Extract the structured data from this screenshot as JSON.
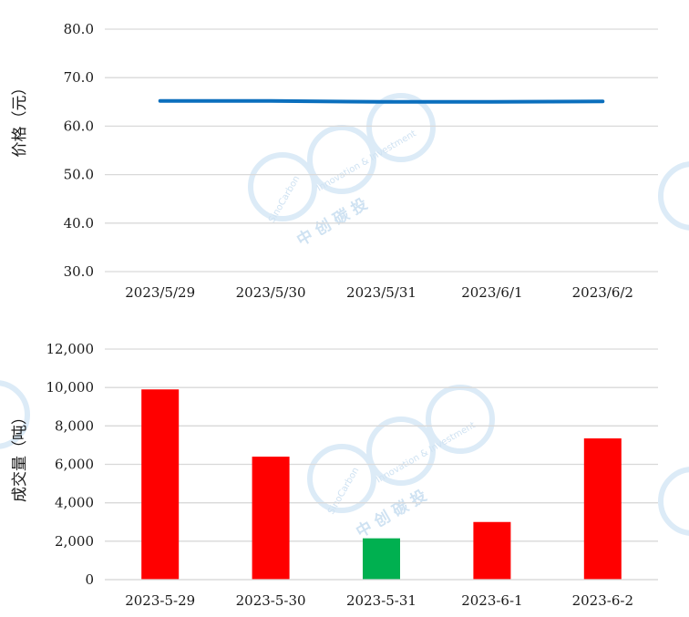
{
  "chart_data": [
    {
      "type": "line",
      "ylabel": "价格（元）",
      "categories": [
        "2023/5/29",
        "2023/5/30",
        "2023/5/31",
        "2023/6/1",
        "2023/6/2"
      ],
      "series": [
        {
          "values": [
            65.2,
            65.2,
            65.0,
            65.0,
            65.1
          ]
        }
      ],
      "ylim": [
        30,
        80
      ],
      "yticks": [
        "30.0",
        "40.0",
        "50.0",
        "60.0",
        "70.0",
        "80.0"
      ],
      "grid": true,
      "colors": {
        "line": "#0b6fbd"
      }
    },
    {
      "type": "bar",
      "ylabel": "成交量（吨）",
      "categories": [
        "2023-5-29",
        "2023-5-30",
        "2023-5-31",
        "2023-6-1",
        "2023-6-2"
      ],
      "series": [
        {
          "values": [
            9900,
            6400,
            2150,
            3000,
            7350
          ]
        }
      ],
      "bar_colors": [
        "#ff0000",
        "#ff0000",
        "#00b050",
        "#ff0000",
        "#ff0000"
      ],
      "ylim": [
        0,
        12000
      ],
      "yticks": [
        "0",
        "2,000",
        "4,000",
        "6,000",
        "8,000",
        "10,000",
        "12,000"
      ],
      "grid": true
    }
  ],
  "watermark": {
    "brand": "SinoCarbon",
    "tagline": "Innovation & Investment",
    "cn": "中 创 碳 投",
    "color": "#dcebf7"
  }
}
